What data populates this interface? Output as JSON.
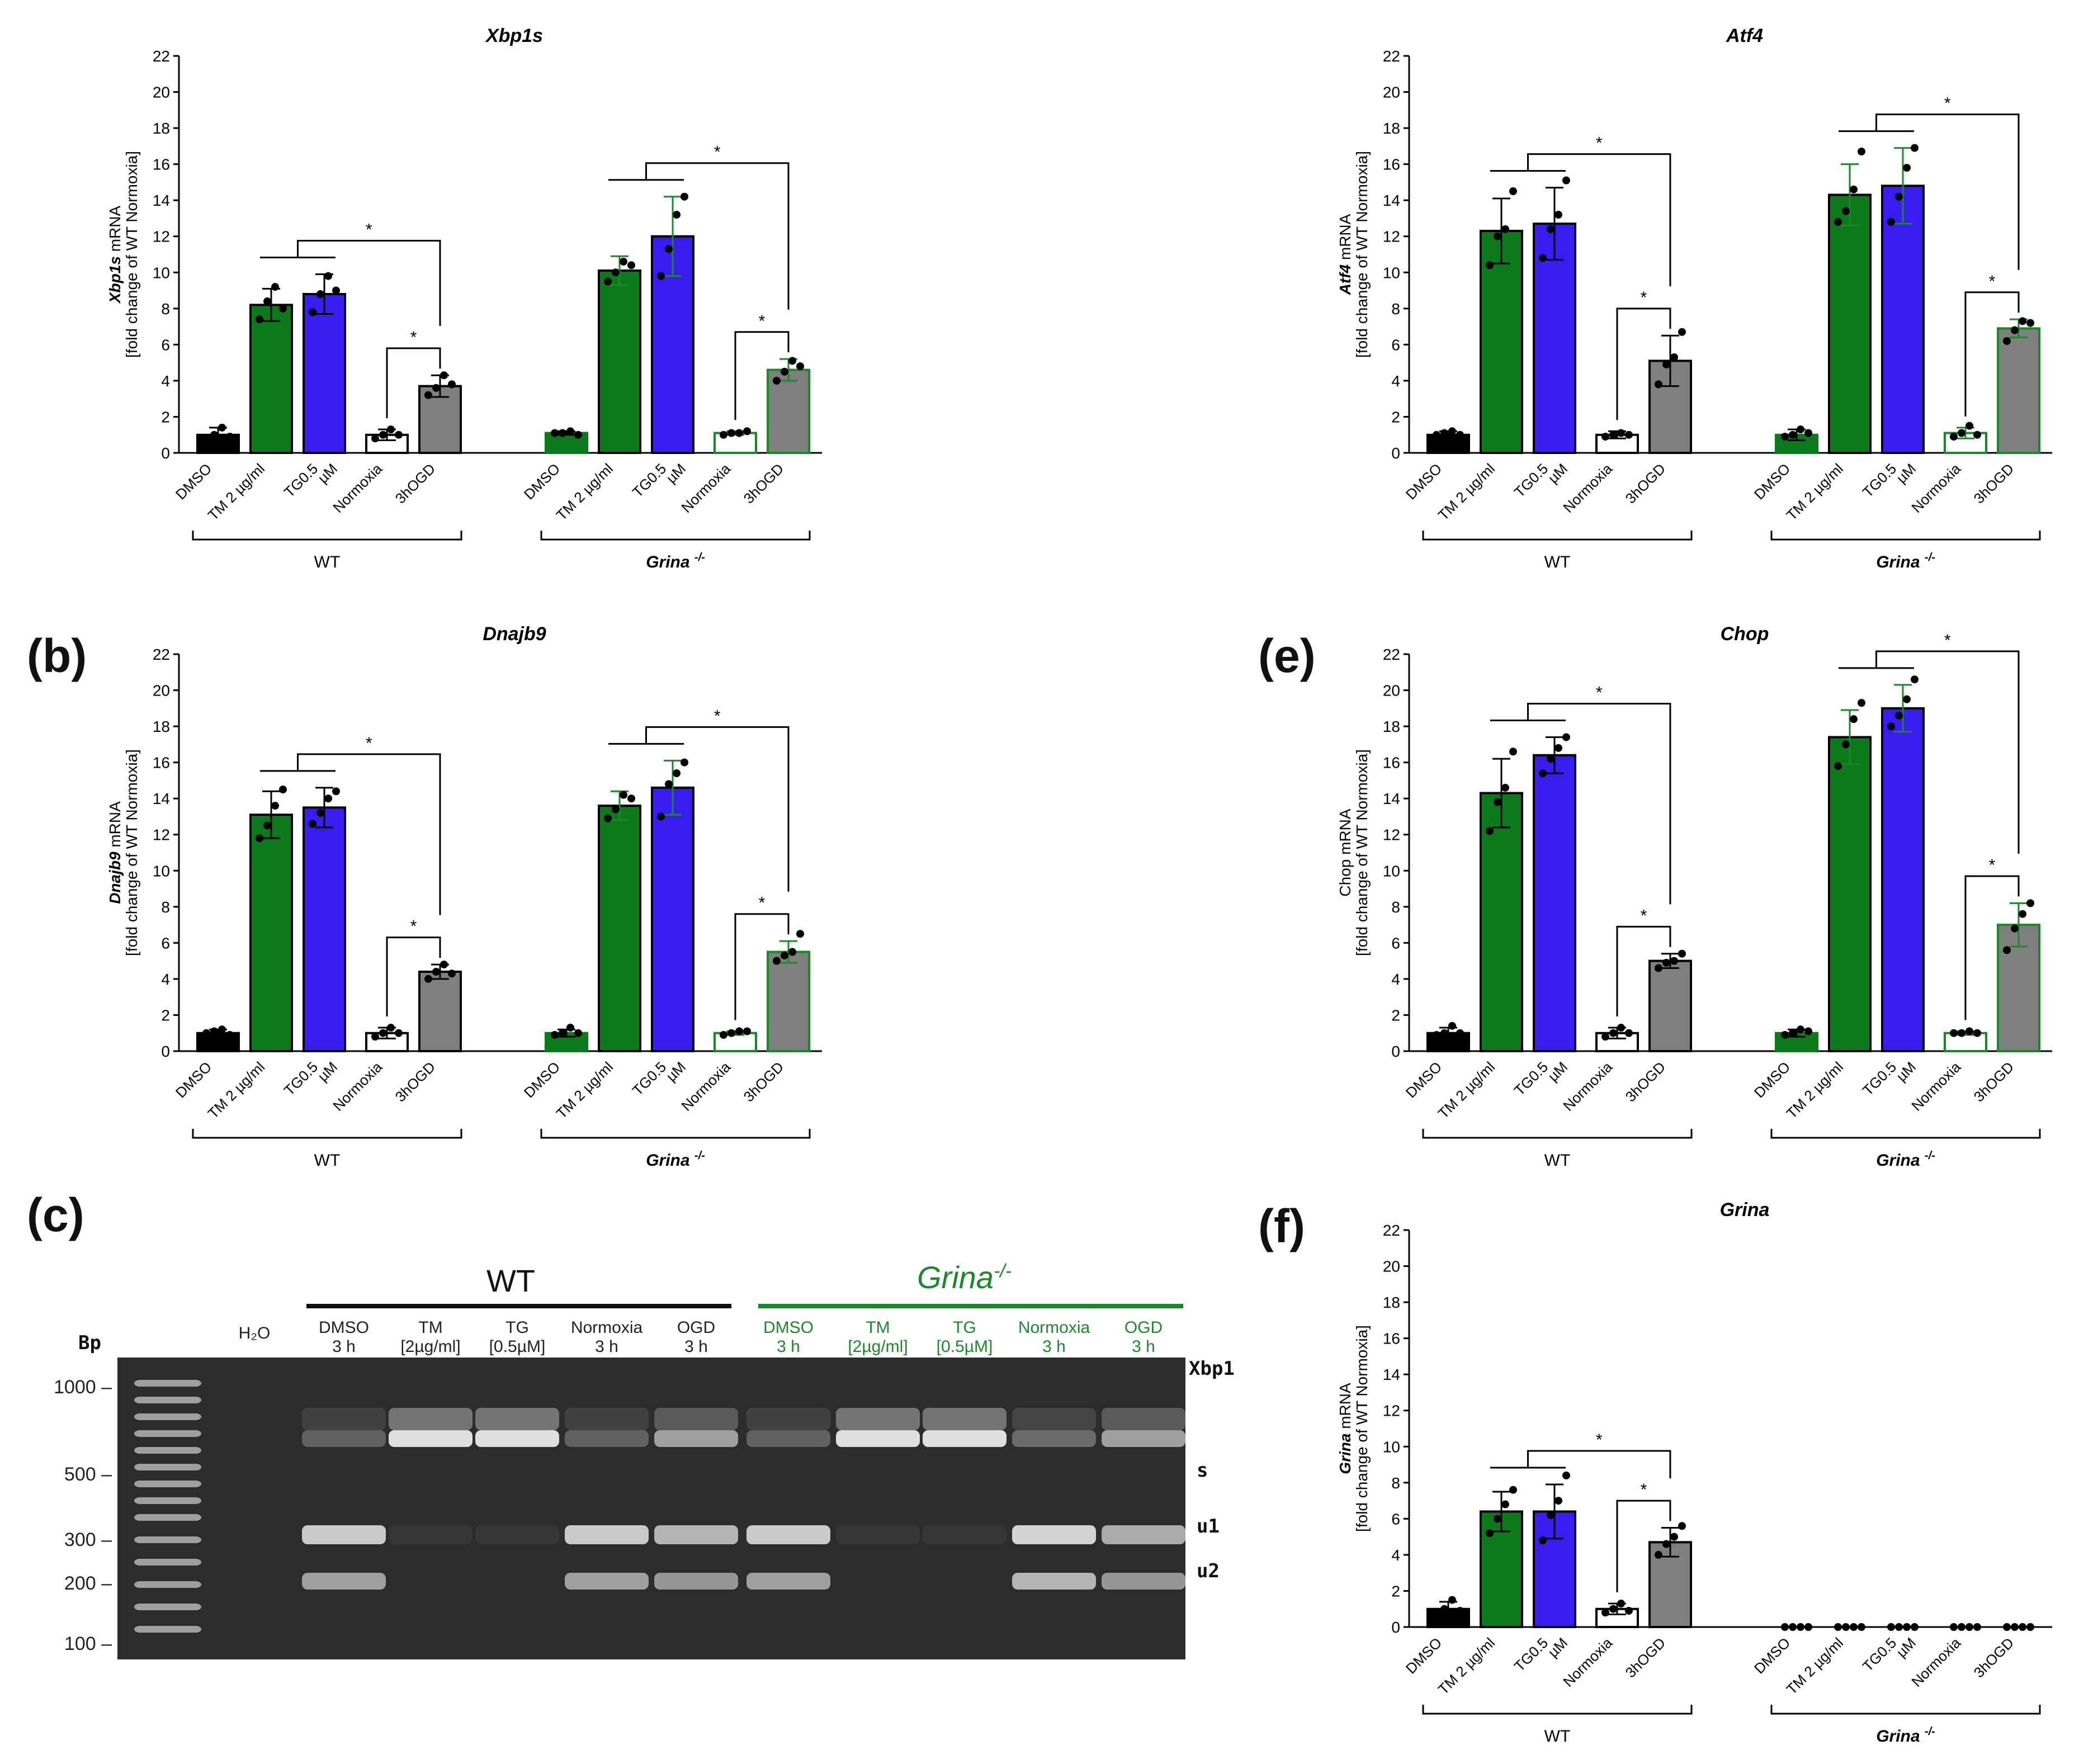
{
  "panel_letters": [
    "(b)",
    "(e)",
    "(c)",
    "(f)"
  ],
  "colors": {
    "wt_dmso": "#000000",
    "tm": "#0a7a1a",
    "tg": "#3a1cf0",
    "normoxia_wt": "#ffffff",
    "ogd": "#7f7f7f",
    "grina_green": "#1a8a28",
    "gel_bg": "#2a2a2a"
  },
  "chart_data": [
    {
      "id": "xbp1s",
      "type": "bar",
      "title": "Xbp1s",
      "ylabel_gene": "Xbp1s",
      "ylabel_line1": "mRNA",
      "ylabel_line2": "[fold change of WT Normoxia]",
      "ylim": [
        0,
        22
      ],
      "yticks": [
        0,
        2,
        4,
        6,
        8,
        10,
        12,
        14,
        16,
        18,
        20,
        22
      ],
      "categories": [
        "DMSO",
        "TM 2 µg/ml",
        "TG0.5",
        "µM",
        "Normoxia",
        "3hOGD"
      ],
      "groups": [
        {
          "name": "WT",
          "values": [
            1.0,
            8.2,
            8.8,
            1.0,
            3.7
          ],
          "errors": [
            0.4,
            0.9,
            1.1,
            0.3,
            0.6
          ],
          "points": [
            [
              0.8,
              1.0,
              1.4,
              0.9
            ],
            [
              7.4,
              8.4,
              9.2,
              8.0
            ],
            [
              7.8,
              8.8,
              9.8,
              9.0
            ],
            [
              0.8,
              1.0,
              1.3,
              1.0
            ],
            [
              3.2,
              3.6,
              4.3,
              3.8
            ]
          ]
        },
        {
          "name": "Grina -/-",
          "values": [
            1.1,
            10.1,
            12.0,
            1.1,
            4.6
          ],
          "errors": [
            0.1,
            0.8,
            2.2,
            0.1,
            0.6
          ],
          "points": [
            [
              1.1,
              1.1,
              1.2,
              1.0
            ],
            [
              9.5,
              10.0,
              10.6,
              10.4
            ],
            [
              9.8,
              11.3,
              13.2,
              14.2
            ],
            [
              1.0,
              1.1,
              1.1,
              1.2
            ],
            [
              4.0,
              4.5,
              5.1,
              4.8
            ]
          ]
        }
      ],
      "significance": [
        "*",
        "*",
        "*",
        "*"
      ]
    },
    {
      "id": "atf4",
      "type": "bar",
      "title": "Atf4",
      "ylabel_gene": "Atf4",
      "ylabel_line1": "mRNA",
      "ylabel_line2": "[fold change of WT Normoxia]",
      "ylim": [
        0,
        22
      ],
      "yticks": [
        0,
        2,
        4,
        6,
        8,
        10,
        12,
        14,
        16,
        18,
        20,
        22
      ],
      "categories": [
        "DMSO",
        "TM 2 µg/ml",
        "TG0.5",
        "µM",
        "Normoxia",
        "3hOGD"
      ],
      "groups": [
        {
          "name": "WT",
          "values": [
            1.0,
            12.3,
            12.7,
            1.0,
            5.1
          ],
          "errors": [
            0.2,
            1.8,
            2.0,
            0.2,
            1.4
          ],
          "points": [
            [
              1.0,
              1.1,
              1.2,
              1.0
            ],
            [
              10.4,
              12.0,
              12.4,
              14.5
            ],
            [
              10.8,
              12.4,
              13.2,
              15.1
            ],
            [
              0.9,
              1.0,
              1.1,
              1.0
            ],
            [
              3.8,
              4.9,
              5.3,
              6.7
            ]
          ]
        },
        {
          "name": "Grina -/-",
          "values": [
            1.0,
            14.3,
            14.8,
            1.1,
            6.9
          ],
          "errors": [
            0.3,
            1.7,
            2.1,
            0.3,
            0.5
          ],
          "points": [
            [
              0.9,
              1.0,
              1.3,
              1.1
            ],
            [
              12.8,
              13.4,
              14.6,
              16.7
            ],
            [
              12.8,
              14.2,
              15.8,
              16.9
            ],
            [
              0.9,
              1.1,
              1.5,
              1.0
            ],
            [
              6.2,
              6.8,
              7.3,
              7.2
            ]
          ]
        }
      ],
      "significance": [
        "*",
        "*",
        "*",
        "*"
      ]
    },
    {
      "id": "dnajb9",
      "type": "bar",
      "title": "Dnajb9",
      "ylabel_gene": "Dnajb9",
      "ylabel_line1": "mRNA",
      "ylabel_line2": "[fold change of WT Normoxia]",
      "ylim": [
        0,
        22
      ],
      "yticks": [
        0,
        2,
        4,
        6,
        8,
        10,
        12,
        14,
        16,
        18,
        20,
        22
      ],
      "categories": [
        "DMSO",
        "TM 2 µg/ml",
        "TG0.5",
        "µM",
        "Normoxia",
        "3hOGD"
      ],
      "groups": [
        {
          "name": "WT",
          "values": [
            1.0,
            13.1,
            13.5,
            1.0,
            4.4
          ],
          "errors": [
            0.2,
            1.3,
            1.1,
            0.3,
            0.4
          ],
          "points": [
            [
              1.0,
              1.1,
              1.2,
              0.9
            ],
            [
              11.8,
              12.5,
              13.6,
              14.5
            ],
            [
              12.6,
              13.2,
              14.0,
              14.4
            ],
            [
              0.8,
              1.0,
              1.3,
              1.0
            ],
            [
              4.0,
              4.4,
              4.8,
              4.3
            ]
          ]
        },
        {
          "name": "Grina -/-",
          "values": [
            1.0,
            13.6,
            14.6,
            1.0,
            5.5
          ],
          "errors": [
            0.2,
            0.8,
            1.5,
            0.1,
            0.6
          ],
          "points": [
            [
              0.9,
              1.0,
              1.3,
              1.0
            ],
            [
              12.9,
              13.4,
              14.2,
              14.0
            ],
            [
              13.0,
              14.8,
              15.4,
              16.0
            ],
            [
              0.9,
              1.0,
              1.1,
              1.1
            ],
            [
              5.0,
              5.3,
              5.5,
              6.5
            ]
          ]
        }
      ],
      "significance": [
        "*",
        "*",
        "*",
        "*"
      ]
    },
    {
      "id": "chop",
      "type": "bar",
      "title": "Chop",
      "ylabel_gene": "",
      "ylabel_line1": "Chop mRNA",
      "ylabel_line2": "[fold change of WT Normoxia]",
      "ylim": [
        0,
        22
      ],
      "yticks": [
        0,
        2,
        4,
        6,
        8,
        10,
        12,
        14,
        16,
        18,
        20,
        22
      ],
      "categories": [
        "DMSO",
        "TM 2 µg/ml",
        "TG0.5",
        "µM",
        "Normoxia",
        "3hOGD"
      ],
      "groups": [
        {
          "name": "WT",
          "values": [
            1.0,
            14.3,
            16.4,
            1.0,
            5.0
          ],
          "errors": [
            0.3,
            1.9,
            1.0,
            0.3,
            0.4
          ],
          "points": [
            [
              0.9,
              1.0,
              1.4,
              1.0
            ],
            [
              12.2,
              13.8,
              14.6,
              16.6
            ],
            [
              15.4,
              16.2,
              16.8,
              17.4
            ],
            [
              0.8,
              1.0,
              1.3,
              1.0
            ],
            [
              4.6,
              4.9,
              5.0,
              5.4
            ]
          ]
        },
        {
          "name": "Grina -/-",
          "values": [
            1.0,
            17.4,
            19.0,
            1.0,
            7.0
          ],
          "errors": [
            0.2,
            1.5,
            1.3,
            0.1,
            1.2
          ],
          "points": [
            [
              0.9,
              1.0,
              1.2,
              1.1
            ],
            [
              15.8,
              17.0,
              18.4,
              19.3
            ],
            [
              18.0,
              18.6,
              19.5,
              20.6
            ],
            [
              1.0,
              1.0,
              1.1,
              1.0
            ],
            [
              5.6,
              6.8,
              7.6,
              8.2
            ]
          ]
        }
      ],
      "significance": [
        "*",
        "*",
        "*",
        "*"
      ]
    },
    {
      "id": "grina",
      "type": "bar",
      "title": "Grina",
      "ylabel_gene": "Grina",
      "ylabel_line1": "mRNA",
      "ylabel_line2": "[fold change of WT Normoxia]",
      "ylim": [
        0,
        22
      ],
      "yticks": [
        0,
        2,
        4,
        6,
        8,
        10,
        12,
        14,
        16,
        18,
        20,
        22
      ],
      "categories": [
        "DMSO",
        "TM 2 µg/ml",
        "TG0.5",
        "µM",
        "Normoxia",
        "3hOGD"
      ],
      "groups": [
        {
          "name": "WT",
          "values": [
            1.0,
            6.4,
            6.4,
            1.0,
            4.7
          ],
          "errors": [
            0.4,
            1.1,
            1.5,
            0.3,
            0.8
          ],
          "points": [
            [
              0.8,
              1.0,
              1.5,
              0.9
            ],
            [
              5.2,
              6.0,
              6.8,
              7.6
            ],
            [
              4.8,
              6.2,
              7.0,
              8.4
            ],
            [
              0.8,
              1.0,
              1.3,
              0.9
            ],
            [
              4.0,
              4.6,
              5.0,
              5.6
            ]
          ]
        },
        {
          "name": "Grina -/-",
          "values": [
            0,
            0,
            0,
            0,
            0
          ],
          "errors": [
            0,
            0,
            0,
            0,
            0
          ],
          "points": [
            [
              0,
              0,
              0,
              0
            ],
            [
              0,
              0,
              0,
              0
            ],
            [
              0,
              0,
              0,
              0
            ],
            [
              0,
              0,
              0,
              0
            ],
            [
              0,
              0,
              0,
              0
            ]
          ]
        }
      ],
      "significance": [
        "*",
        "*"
      ]
    }
  ],
  "group_labels": {
    "wt": "WT",
    "grina": "Grina",
    "grina_sup": "-/-"
  },
  "gel": {
    "header_wt": "WT",
    "header_grina": "Grina",
    "header_grina_sup": "-/-",
    "bp_title": "Bp",
    "bp_ticks": [
      "1000",
      "500",
      "300",
      "200",
      "100"
    ],
    "lanes": [
      {
        "label": "H₂O",
        "color": "#222"
      },
      {
        "label": "DMSO\n3 h",
        "color": "#222"
      },
      {
        "label": "TM\n[2µg/ml]",
        "color": "#222"
      },
      {
        "label": "TG\n[0.5µM]",
        "color": "#222"
      },
      {
        "label": "Normoxia\n3 h",
        "color": "#222"
      },
      {
        "label": "OGD\n3 h",
        "color": "#222"
      },
      {
        "label": "DMSO\n3 h",
        "color": "#1a8a28"
      },
      {
        "label": "TM\n[2µg/ml]",
        "color": "#1a8a28"
      },
      {
        "label": "TG\n[0.5µM]",
        "color": "#1a8a28"
      },
      {
        "label": "Normoxia\n3 h",
        "color": "#1a8a28"
      },
      {
        "label": "OGD\n3 h",
        "color": "#1a8a28"
      }
    ],
    "side_labels": [
      "Xbp1",
      "s",
      "u1",
      "u2"
    ]
  }
}
